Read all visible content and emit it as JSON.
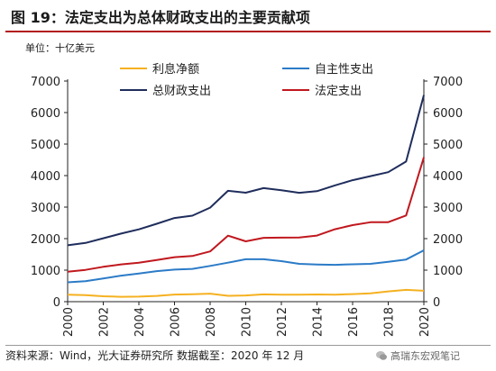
{
  "title": "图 19：法定支出为总体财政支出的主要贡献项",
  "footer": {
    "source": "资料来源：Wind，光大证券研究所  数据截至：2020 年 12 月",
    "watermark": "高瑞东宏观笔记"
  },
  "chart_data": {
    "type": "line",
    "unit_label": "单位：十亿美元",
    "x": [
      2000,
      2001,
      2002,
      2003,
      2004,
      2005,
      2006,
      2007,
      2008,
      2009,
      2010,
      2011,
      2012,
      2013,
      2014,
      2015,
      2016,
      2017,
      2018,
      2019,
      2020
    ],
    "xlim": [
      2000,
      2020
    ],
    "xticks": [
      2000,
      2002,
      2004,
      2006,
      2008,
      2010,
      2012,
      2014,
      2016,
      2018,
      2020
    ],
    "ylim": [
      0,
      7000
    ],
    "yticks": [
      0,
      1000,
      2000,
      3000,
      4000,
      5000,
      6000,
      7000
    ],
    "secondary_axis": true,
    "legend_position": "top",
    "series": [
      {
        "name": "利息净额",
        "color": "#f5b120",
        "values": [
          223,
          206,
          171,
          153,
          160,
          184,
          227,
          237,
          253,
          187,
          196,
          230,
          220,
          221,
          229,
          223,
          240,
          263,
          325,
          375,
          345
        ]
      },
      {
        "name": "自主性支出",
        "color": "#2b7bc7",
        "values": [
          614,
          649,
          734,
          825,
          895,
          968,
          1016,
          1041,
          1135,
          1237,
          1347,
          1347,
          1285,
          1201,
          1179,
          1168,
          1185,
          1200,
          1262,
          1338,
          1628
        ]
      },
      {
        "name": "总财政支出",
        "color": "#1f2d5c",
        "values": [
          1789,
          1863,
          2011,
          2160,
          2293,
          2472,
          2655,
          2729,
          2983,
          3518,
          3457,
          3603,
          3537,
          3455,
          3506,
          3688,
          3853,
          3982,
          4109,
          4447,
          6553
        ]
      },
      {
        "name": "法定支出",
        "color": "#c0181e",
        "values": [
          951,
          1008,
          1106,
          1182,
          1238,
          1320,
          1412,
          1450,
          1595,
          2093,
          1913,
          2026,
          2031,
          2033,
          2098,
          2297,
          2429,
          2519,
          2522,
          2734,
          4580
        ]
      }
    ]
  }
}
